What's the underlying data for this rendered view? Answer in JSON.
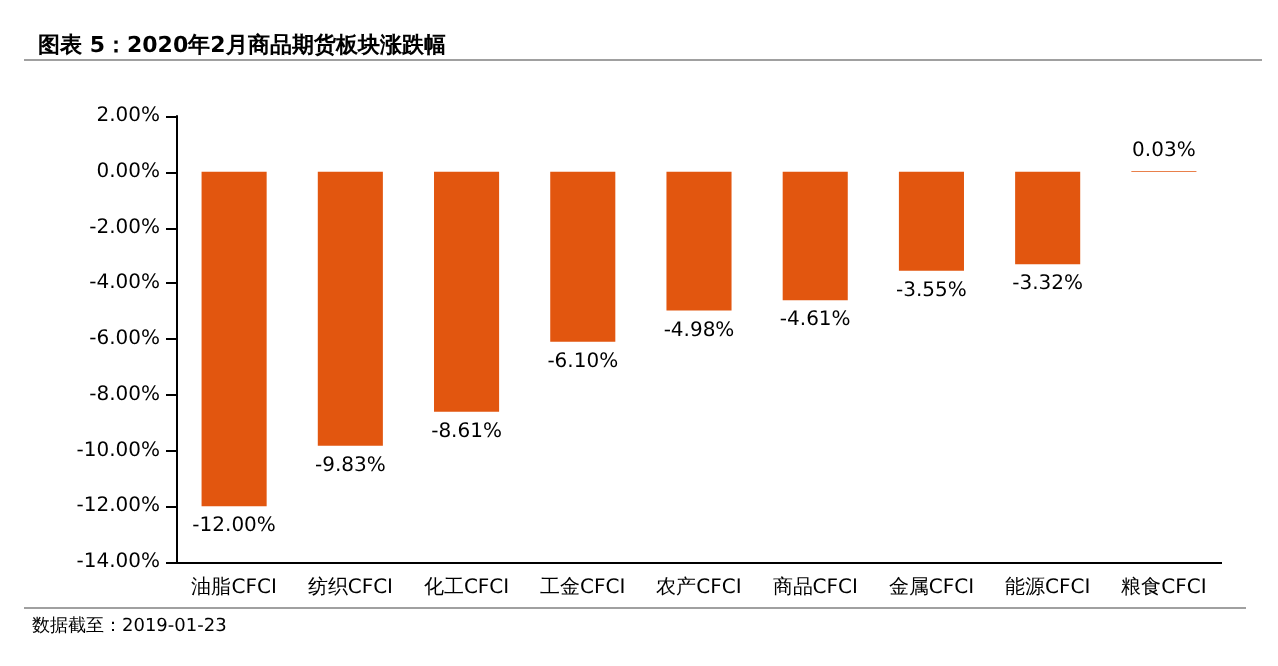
{
  "chart_data": {
    "type": "bar",
    "title": "图表 5：2020年2月商品期货板块涨跌幅",
    "categories": [
      "油脂CFCI",
      "纺织CFCI",
      "化工CFCI",
      "工金CFCI",
      "农产CFCI",
      "商品CFCI",
      "金属CFCI",
      "能源CFCI",
      "粮食CFCI"
    ],
    "values": [
      -12.0,
      -9.83,
      -8.61,
      -6.1,
      -4.98,
      -4.61,
      -3.55,
      -3.32,
      0.03
    ],
    "value_labels": [
      "-12.00%",
      "-9.83%",
      "-8.61%",
      "-6.10%",
      "-4.98%",
      "-4.61%",
      "-3.55%",
      "-3.32%",
      "0.03%"
    ],
    "color": "#e2560f",
    "ylim": [
      -14,
      2
    ],
    "yticks": [
      {
        "value": -14,
        "label": "-14.00%"
      },
      {
        "value": -12,
        "label": "-12.00%"
      },
      {
        "value": -10,
        "label": "-10.00%"
      },
      {
        "value": -8,
        "label": "-8.00%"
      },
      {
        "value": -6,
        "label": "-6.00%"
      },
      {
        "value": -4,
        "label": "-4.00%"
      },
      {
        "value": -2,
        "label": "-2.00%"
      },
      {
        "value": 0,
        "label": "0.00%"
      },
      {
        "value": 2,
        "label": "2.00%"
      }
    ],
    "grid": false,
    "annotations": [
      "数据截至：2019-01-23"
    ]
  }
}
